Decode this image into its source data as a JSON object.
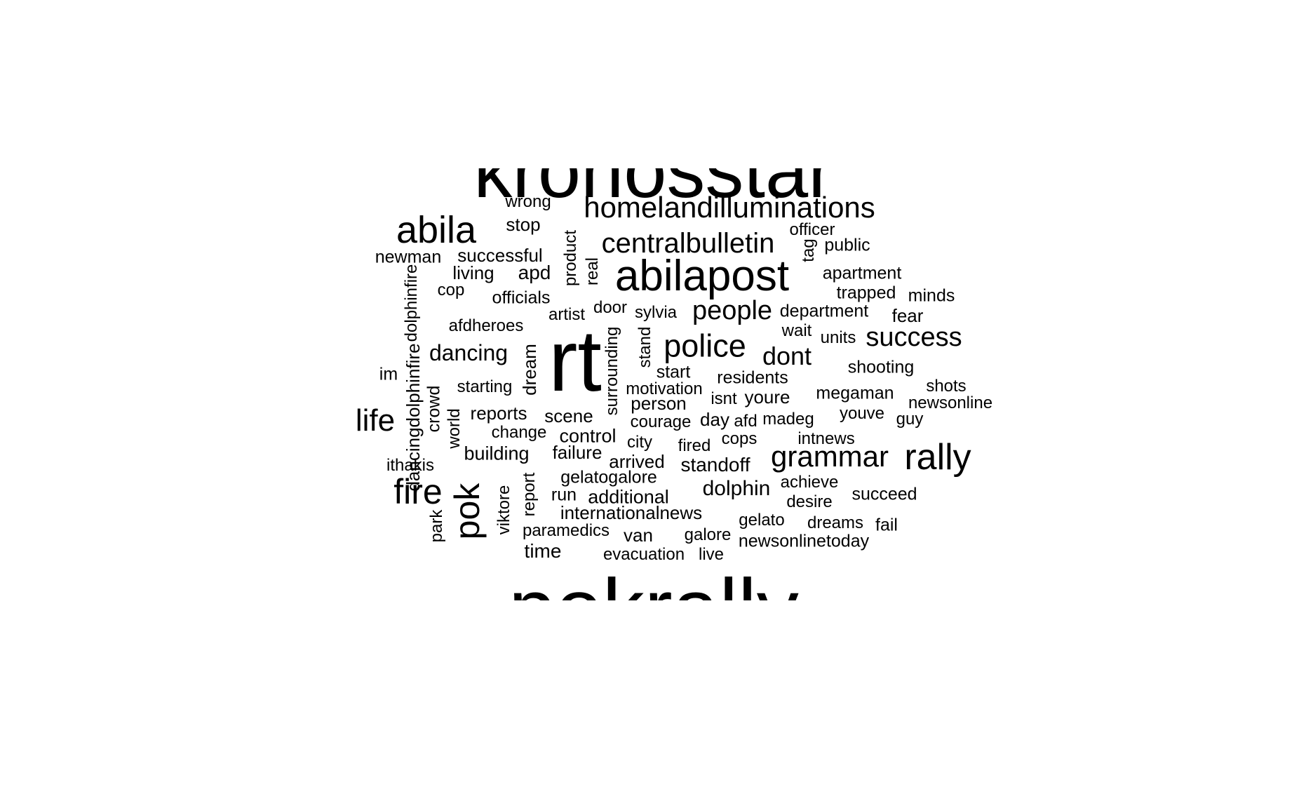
{
  "wordcloud": {
    "text_color": "#000000",
    "background": "#ffffff",
    "words": [
      {
        "text": "kronosstar",
        "rotated": false
      },
      {
        "text": "pokrally",
        "rotated": false
      },
      {
        "text": "rt",
        "rotated": false
      },
      {
        "text": "abilapost",
        "rotated": false
      },
      {
        "text": "abila",
        "rotated": false
      },
      {
        "text": "homelandilluminations",
        "rotated": false
      },
      {
        "text": "centralbulletin",
        "rotated": false
      },
      {
        "text": "police",
        "rotated": false
      },
      {
        "text": "rally",
        "rotated": false
      },
      {
        "text": "grammar",
        "rotated": false
      },
      {
        "text": "fire",
        "rotated": false
      },
      {
        "text": "pok",
        "rotated": true
      },
      {
        "text": "life",
        "rotated": false
      },
      {
        "text": "success",
        "rotated": false
      },
      {
        "text": "people",
        "rotated": false
      },
      {
        "text": "dont",
        "rotated": false
      },
      {
        "text": "dancing",
        "rotated": false
      },
      {
        "text": "dolphin",
        "rotated": false
      },
      {
        "text": "standoff",
        "rotated": false
      },
      {
        "text": "wrong",
        "rotated": false
      },
      {
        "text": "stop",
        "rotated": false
      },
      {
        "text": "newman",
        "rotated": false
      },
      {
        "text": "successful",
        "rotated": false
      },
      {
        "text": "living",
        "rotated": false
      },
      {
        "text": "apd",
        "rotated": false
      },
      {
        "text": "cop",
        "rotated": false
      },
      {
        "text": "officials",
        "rotated": false
      },
      {
        "text": "afdheroes",
        "rotated": false
      },
      {
        "text": "artist",
        "rotated": false
      },
      {
        "text": "door",
        "rotated": false
      },
      {
        "text": "sylvia",
        "rotated": false
      },
      {
        "text": "product",
        "rotated": true
      },
      {
        "text": "real",
        "rotated": true
      },
      {
        "text": "officer",
        "rotated": false
      },
      {
        "text": "tag",
        "rotated": true
      },
      {
        "text": "public",
        "rotated": false
      },
      {
        "text": "apartment",
        "rotated": false
      },
      {
        "text": "trapped",
        "rotated": false
      },
      {
        "text": "minds",
        "rotated": false
      },
      {
        "text": "department",
        "rotated": false
      },
      {
        "text": "fear",
        "rotated": false
      },
      {
        "text": "wait",
        "rotated": false
      },
      {
        "text": "units",
        "rotated": false
      },
      {
        "text": "dolphinfire",
        "rotated": true
      },
      {
        "text": "dancingdolphinfire",
        "rotated": true
      },
      {
        "text": "im",
        "rotated": false
      },
      {
        "text": "dream",
        "rotated": true
      },
      {
        "text": "surrounding",
        "rotated": true
      },
      {
        "text": "stand",
        "rotated": true
      },
      {
        "text": "start",
        "rotated": false
      },
      {
        "text": "residents",
        "rotated": false
      },
      {
        "text": "shooting",
        "rotated": false
      },
      {
        "text": "starting",
        "rotated": false
      },
      {
        "text": "motivation",
        "rotated": false
      },
      {
        "text": "isnt",
        "rotated": false
      },
      {
        "text": "youre",
        "rotated": false
      },
      {
        "text": "megaman",
        "rotated": false
      },
      {
        "text": "shots",
        "rotated": false
      },
      {
        "text": "newsonline",
        "rotated": false
      },
      {
        "text": "crowd",
        "rotated": true
      },
      {
        "text": "world",
        "rotated": true
      },
      {
        "text": "reports",
        "rotated": false
      },
      {
        "text": "scene",
        "rotated": false
      },
      {
        "text": "person",
        "rotated": false
      },
      {
        "text": "courage",
        "rotated": false
      },
      {
        "text": "day",
        "rotated": false
      },
      {
        "text": "afd",
        "rotated": false
      },
      {
        "text": "madeg",
        "rotated": false
      },
      {
        "text": "youve",
        "rotated": false
      },
      {
        "text": "guy",
        "rotated": false
      },
      {
        "text": "change",
        "rotated": false
      },
      {
        "text": "control",
        "rotated": false
      },
      {
        "text": "city",
        "rotated": false
      },
      {
        "text": "fired",
        "rotated": false
      },
      {
        "text": "cops",
        "rotated": false
      },
      {
        "text": "intnews",
        "rotated": false
      },
      {
        "text": "building",
        "rotated": false
      },
      {
        "text": "failure",
        "rotated": false
      },
      {
        "text": "arrived",
        "rotated": false
      },
      {
        "text": "ithakis",
        "rotated": false
      },
      {
        "text": "report",
        "rotated": true
      },
      {
        "text": "viktore",
        "rotated": true
      },
      {
        "text": "park",
        "rotated": true
      },
      {
        "text": "gelatogalore",
        "rotated": false
      },
      {
        "text": "achieve",
        "rotated": false
      },
      {
        "text": "succeed",
        "rotated": false
      },
      {
        "text": "run",
        "rotated": false
      },
      {
        "text": "additional",
        "rotated": false
      },
      {
        "text": "desire",
        "rotated": false
      },
      {
        "text": "internationalnews",
        "rotated": false
      },
      {
        "text": "gelato",
        "rotated": false
      },
      {
        "text": "dreams",
        "rotated": false
      },
      {
        "text": "fail",
        "rotated": false
      },
      {
        "text": "paramedics",
        "rotated": false
      },
      {
        "text": "van",
        "rotated": false
      },
      {
        "text": "galore",
        "rotated": false
      },
      {
        "text": "newsonlinetoday",
        "rotated": false
      },
      {
        "text": "time",
        "rotated": false
      },
      {
        "text": "evacuation",
        "rotated": false
      },
      {
        "text": "live",
        "rotated": false
      }
    ]
  }
}
